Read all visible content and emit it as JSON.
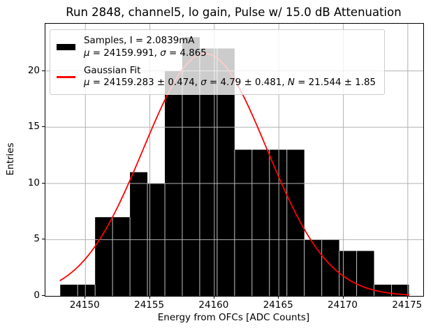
{
  "chart_data": {
    "type": "bar",
    "subtype": "histogram-with-gaussian-fit",
    "title": "Run 2848, channel5, lo gain, Pulse w/ 15.0 dB Attenuation",
    "xlabel": "Energy from OFCs [ADC Counts]",
    "ylabel": "Entries",
    "xlim": [
      24146.9,
      24176.2
    ],
    "ylim": [
      0,
      24.2
    ],
    "xticks": [
      24150,
      24155,
      24160,
      24165,
      24170,
      24175
    ],
    "yticks": [
      0,
      5,
      10,
      15,
      20
    ],
    "grid": true,
    "grid_color": "#b0b0b0",
    "bar_color": "#000000",
    "bin_start": 24148.05,
    "bin_width": 1.352,
    "counts": [
      1,
      1,
      7,
      7,
      11,
      10,
      20,
      23,
      22,
      22,
      13,
      13,
      13,
      13,
      5,
      5,
      4,
      4,
      1,
      1
    ],
    "samples_stats": {
      "current": "2.0839mA",
      "mu": 24159.991,
      "sigma": 4.865
    },
    "fit": {
      "type": "gaussian",
      "mu": 24159.283,
      "mu_err": 0.474,
      "sigma": 4.79,
      "sigma_err": 0.481,
      "amplitude": 21.544,
      "amplitude_err": 1.85,
      "color": "#ff0000",
      "x_range": [
        24148.05,
        24175.09
      ]
    },
    "legend": {
      "position": "upper left",
      "entries": [
        {
          "name": "samples",
          "swatch": "bar",
          "color": "#000000",
          "lines": [
            [
              {
                "t": "Samples, I = 2.0839mA"
              }
            ],
            [
              {
                "t": "μ",
                "i": 1
              },
              {
                "t": " = 24159.991, "
              },
              {
                "t": "σ",
                "i": 1
              },
              {
                "t": " = 4.865"
              }
            ]
          ]
        },
        {
          "name": "gaussian-fit",
          "swatch": "line",
          "color": "#ff0000",
          "lines": [
            [
              {
                "t": "Gaussian Fit"
              }
            ],
            [
              {
                "t": "μ",
                "i": 1
              },
              {
                "t": " = 24159.283 ± 0.474, "
              },
              {
                "t": "σ",
                "i": 1
              },
              {
                "t": " = 4.79 ± 0.481, "
              },
              {
                "t": "N",
                "i": 1
              },
              {
                "t": " = 21.544 ± 1.85"
              }
            ]
          ]
        }
      ]
    }
  }
}
